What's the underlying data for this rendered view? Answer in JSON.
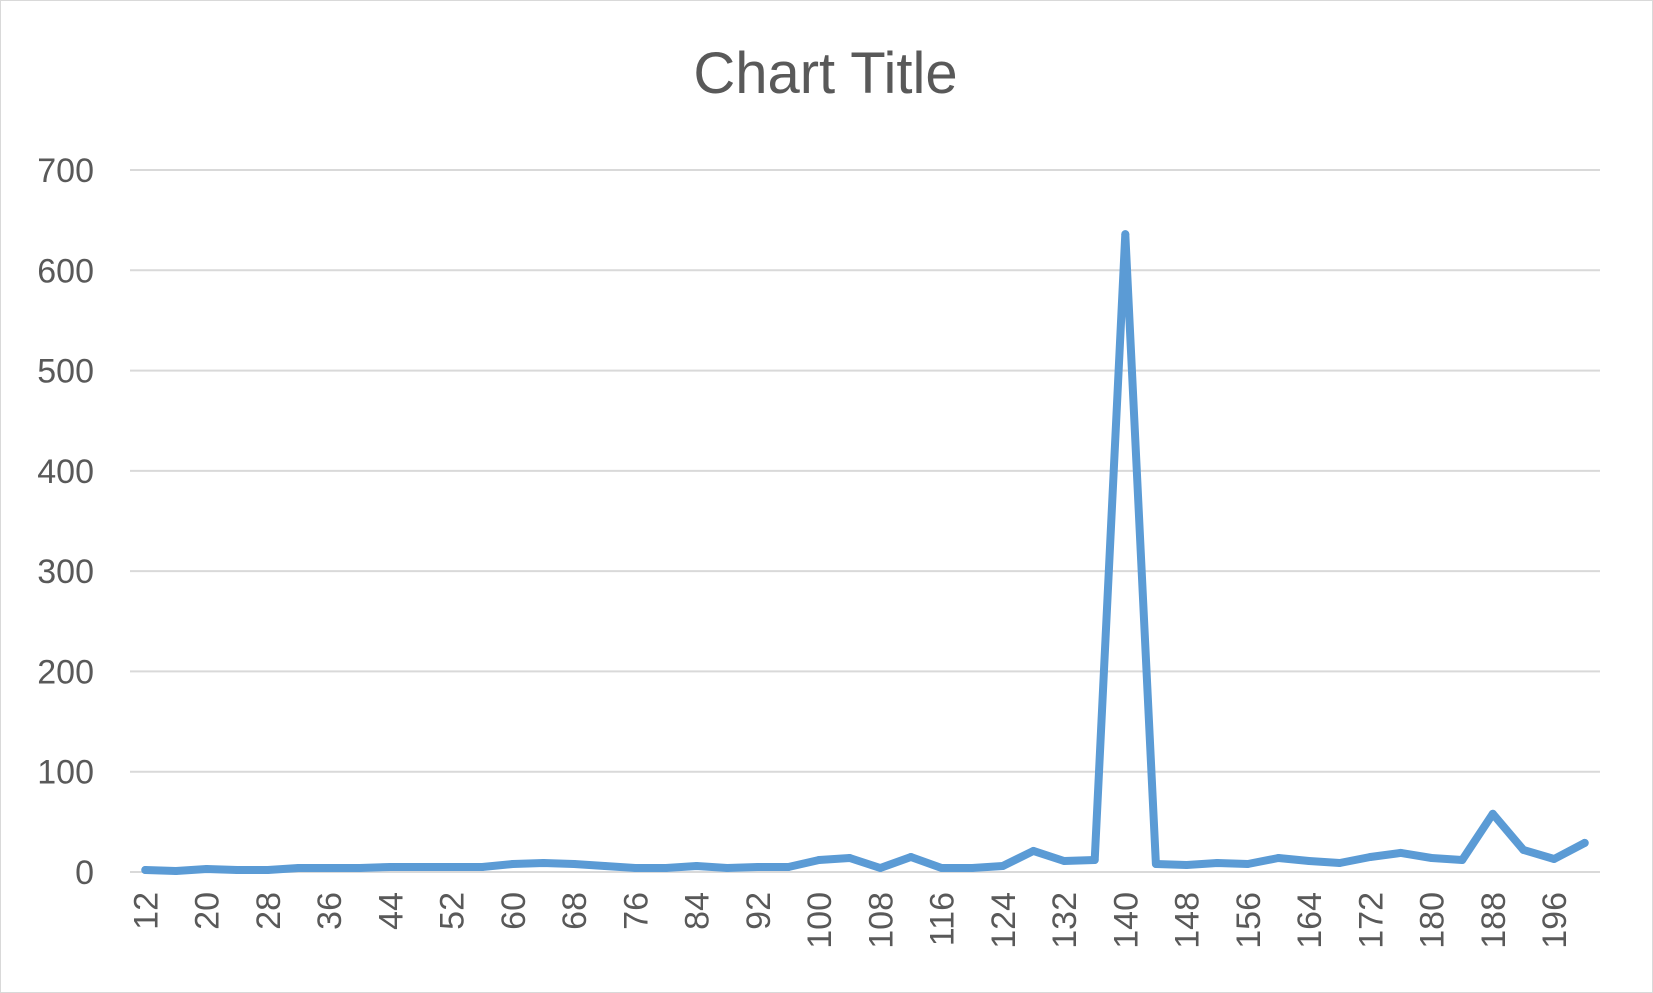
{
  "chart_data": {
    "type": "line",
    "title": "Chart Title",
    "xlabel": "",
    "ylabel": "",
    "ylim": [
      0,
      700
    ],
    "yticks": [
      0,
      100,
      200,
      300,
      400,
      500,
      600,
      700
    ],
    "grid": "horizontal",
    "legend": "none",
    "line_color": "#5b9bd5",
    "x": [
      12,
      16,
      20,
      24,
      28,
      32,
      36,
      40,
      44,
      48,
      52,
      56,
      60,
      64,
      68,
      72,
      76,
      80,
      84,
      88,
      92,
      96,
      100,
      104,
      108,
      112,
      116,
      120,
      124,
      128,
      132,
      136,
      140,
      144,
      148,
      152,
      156,
      160,
      164,
      168,
      172,
      176,
      180,
      184,
      188,
      192,
      196,
      200
    ],
    "xtick_labels": [
      "12",
      "20",
      "28",
      "36",
      "44",
      "52",
      "60",
      "68",
      "76",
      "84",
      "92",
      "100",
      "108",
      "116",
      "124",
      "132",
      "140",
      "148",
      "156",
      "164",
      "172",
      "180",
      "188",
      "196"
    ],
    "series": [
      {
        "values": [
          2,
          1,
          3,
          2,
          2,
          4,
          4,
          4,
          5,
          5,
          5,
          5,
          8,
          9,
          8,
          6,
          4,
          4,
          6,
          4,
          5,
          5,
          12,
          14,
          4,
          15,
          4,
          4,
          6,
          21,
          11,
          12,
          636,
          8,
          7,
          9,
          8,
          14,
          11,
          9,
          15,
          19,
          14,
          12,
          58,
          22,
          13,
          29
        ]
      }
    ]
  }
}
